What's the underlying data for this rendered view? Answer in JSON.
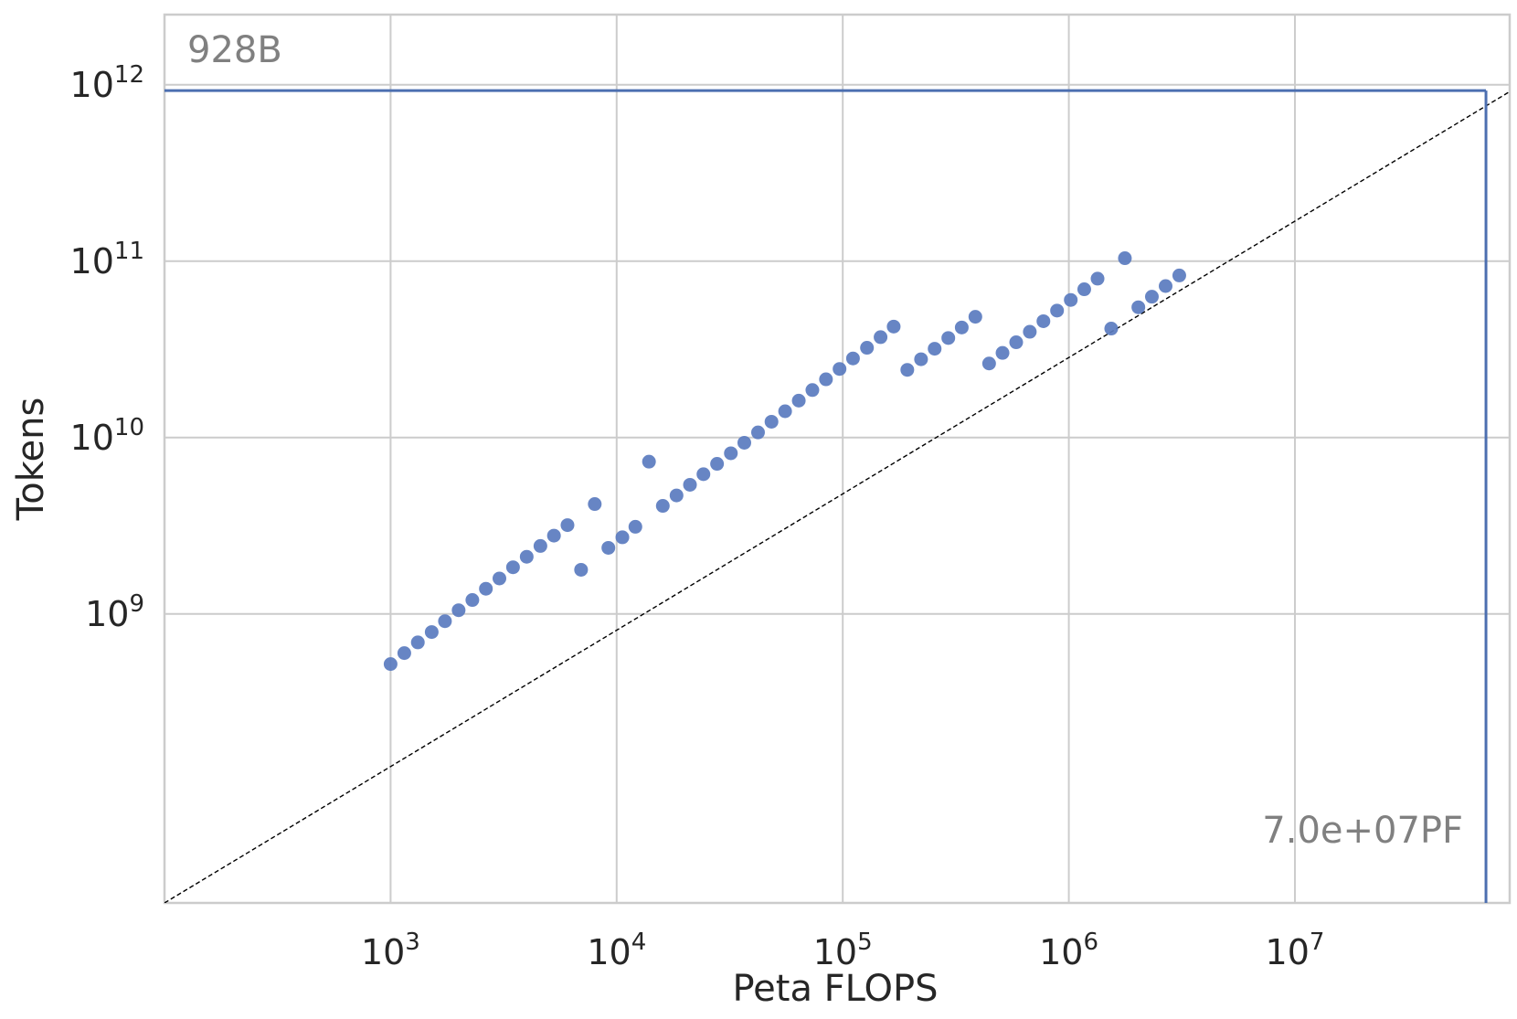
{
  "chart_data": {
    "type": "scatter",
    "title": "",
    "xlabel": "Peta FLOPS",
    "ylabel": "Tokens",
    "x_scale": "log",
    "y_scale": "log",
    "xlim": [
      100,
      10000000
    ],
    "ylim": [
      23000000,
      2500000000000
    ],
    "x_ticks": [
      {
        "value": 1000,
        "base": "10",
        "exp": "3"
      },
      {
        "value": 10000,
        "base": "10",
        "exp": "4"
      },
      {
        "value": 100000,
        "base": "10",
        "exp": "5"
      },
      {
        "value": 1000000,
        "base": "10",
        "exp": "6"
      },
      {
        "value": 10000000,
        "base": "10",
        "exp": "7"
      }
    ],
    "y_ticks": [
      {
        "value": 1000000000,
        "base": "10",
        "exp": "9"
      },
      {
        "value": 10000000000,
        "base": "10",
        "exp": "10"
      },
      {
        "value": 100000000000,
        "base": "10",
        "exp": "11"
      },
      {
        "value": 1000000000000,
        "base": "10",
        "exp": "12"
      }
    ],
    "grid": true,
    "marker_color": "#5a7bbf",
    "line_color": "#4c6fb0",
    "fit_line": {
      "style": "dashed",
      "color": "#000000",
      "points": [
        [
          100,
          23000000
        ],
        [
          100000000,
          1000000000000
        ]
      ]
    },
    "reference_lines": {
      "x": 70000000,
      "y": 928000000000
    },
    "annotations": {
      "top_left": "928B",
      "bottom_right": "7.0e+07PF"
    },
    "points": [
      [
        1000,
        520000000
      ],
      [
        1150,
        600000000
      ],
      [
        1320,
        690000000
      ],
      [
        1520,
        790000000
      ],
      [
        1740,
        910000000
      ],
      [
        2000,
        1050000000
      ],
      [
        2300,
        1200000000
      ],
      [
        2640,
        1390000000
      ],
      [
        3030,
        1590000000
      ],
      [
        3480,
        1840000000
      ],
      [
        4000,
        2110000000
      ],
      [
        4600,
        2430000000
      ],
      [
        5280,
        2780000000
      ],
      [
        6060,
        3190000000
      ],
      [
        6960,
        1780000000
      ],
      [
        8000,
        4200000000
      ],
      [
        9190,
        2370000000
      ],
      [
        10600,
        2720000000
      ],
      [
        12100,
        3120000000
      ],
      [
        13900,
        7300000000
      ],
      [
        16000,
        4100000000
      ],
      [
        18400,
        4700000000
      ],
      [
        21100,
        5400000000
      ],
      [
        24200,
        6200000000
      ],
      [
        27800,
        7100000000
      ],
      [
        32000,
        8150000000
      ],
      [
        36700,
        9350000000
      ],
      [
        42200,
        10700000000
      ],
      [
        48400,
        12300000000
      ],
      [
        55600,
        14100000000
      ],
      [
        63900,
        16200000000
      ],
      [
        73400,
        18600000000
      ],
      [
        84300,
        21400000000
      ],
      [
        96800,
        24500000000
      ],
      [
        111000,
        28100000000
      ],
      [
        128000,
        32300000000
      ],
      [
        147000,
        37100000000
      ],
      [
        168000,
        42600000000
      ],
      [
        193000,
        24200000000
      ],
      [
        222000,
        27800000000
      ],
      [
        255000,
        31900000000
      ],
      [
        293000,
        36700000000
      ],
      [
        336000,
        42100000000
      ],
      [
        386000,
        48400000000
      ],
      [
        444000,
        26300000000
      ],
      [
        509000,
        30200000000
      ],
      [
        585000,
        34700000000
      ],
      [
        672000,
        39800000000
      ],
      [
        772000,
        45700000000
      ],
      [
        887000,
        52500000000
      ],
      [
        1020000,
        60300000000
      ],
      [
        1170000,
        69300000000
      ],
      [
        1340000,
        79600000000
      ],
      [
        1540000,
        41500000000
      ],
      [
        1770000,
        104000000000
      ],
      [
        2030000,
        54800000000
      ],
      [
        2330000,
        62900000000
      ],
      [
        2680000,
        72300000000
      ],
      [
        3080000,
        83000000000
      ]
    ]
  }
}
